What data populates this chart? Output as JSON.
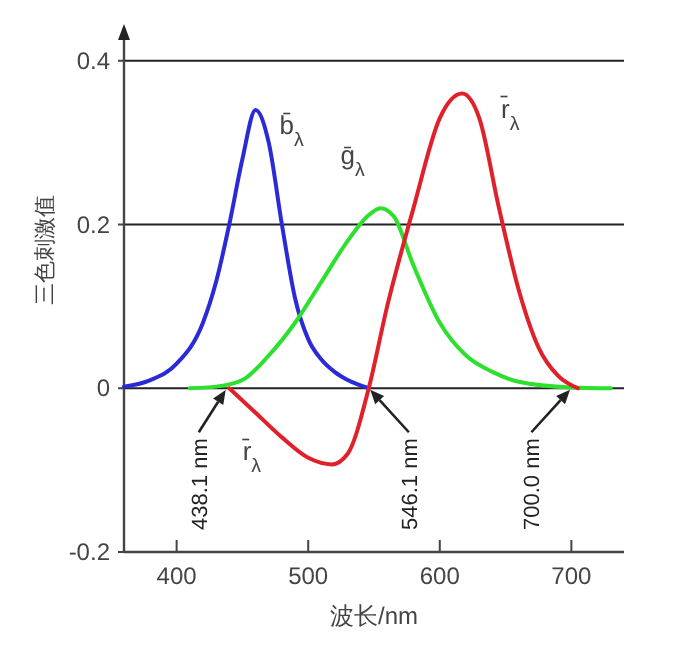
{
  "chart_data": {
    "type": "line",
    "xlabel": "波长/nm",
    "ylabel": "三色刺激值",
    "xlim": [
      360,
      740
    ],
    "ylim": [
      -0.2,
      0.44
    ],
    "xticks": [
      400,
      500,
      600,
      700
    ],
    "yticks": [
      -0.2,
      0,
      0.2,
      0.4
    ],
    "grid": "y",
    "marker": "none",
    "line_style": "solid",
    "series": [
      {
        "name": "b̄$_{λ}$",
        "color": "#2a2ad6",
        "x": [
          360,
          380,
          400,
          420,
          430,
          440,
          450,
          460,
          470,
          480,
          490,
          500,
          510,
          520,
          530,
          546
        ],
        "values": [
          0.002,
          0.01,
          0.03,
          0.08,
          0.13,
          0.2,
          0.28,
          0.34,
          0.3,
          0.2,
          0.11,
          0.06,
          0.035,
          0.02,
          0.01,
          0
        ]
      },
      {
        "name": "ḡ$_{λ}$",
        "color": "#2ee02e",
        "x": [
          410,
          430,
          450,
          470,
          490,
          510,
          530,
          545,
          555,
          565,
          580,
          600,
          620,
          640,
          660,
          700,
          730
        ],
        "values": [
          0,
          0.002,
          0.01,
          0.04,
          0.08,
          0.13,
          0.18,
          0.21,
          0.22,
          0.21,
          0.15,
          0.08,
          0.04,
          0.02,
          0.008,
          0.001,
          0
        ]
      },
      {
        "name": "r̄$_{λ}$",
        "color": "#e0202a",
        "x": [
          440,
          460,
          480,
          500,
          518,
          530,
          546,
          560,
          580,
          600,
          617,
          630,
          645,
          660,
          675,
          690,
          705
        ],
        "values": [
          0,
          -0.03,
          -0.06,
          -0.085,
          -0.093,
          -0.08,
          0,
          0.1,
          0.22,
          0.33,
          0.36,
          0.33,
          0.22,
          0.12,
          0.05,
          0.015,
          0
        ]
      }
    ],
    "annotations": [
      {
        "text": "438.1 nm",
        "x": 438.1,
        "y": 0
      },
      {
        "text": "546.1 nm",
        "x": 546.1,
        "y": 0
      },
      {
        "text": "700.0 nm",
        "x": 700,
        "y": 0
      }
    ]
  }
}
